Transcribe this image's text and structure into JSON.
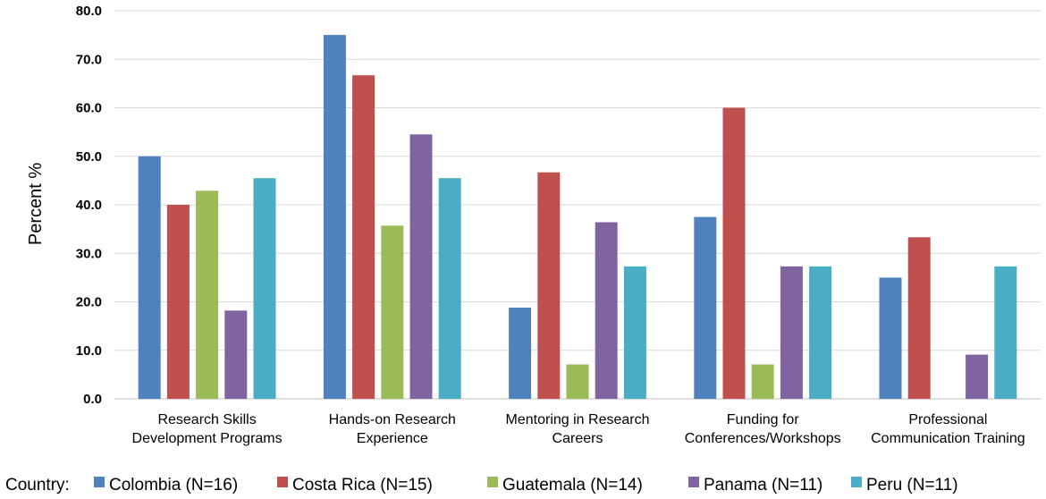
{
  "chart_data": {
    "type": "bar",
    "title": "",
    "xlabel": "",
    "ylabel": "Percent %",
    "ylim": [
      0,
      80
    ],
    "yticks": [
      "0.0",
      "10.0",
      "20.0",
      "30.0",
      "40.0",
      "50.0",
      "60.0",
      "70.0",
      "80.0"
    ],
    "grid": true,
    "legend_position": "bottom",
    "legend_title": "Country:",
    "categories": [
      [
        "Research Skills",
        "Development Programs"
      ],
      [
        "Hands-on Research",
        "Experience"
      ],
      [
        "Mentoring in Research",
        "Careers"
      ],
      [
        "Funding for",
        "Conferences/Workshops"
      ],
      [
        "Professional",
        "Communication Training"
      ]
    ],
    "series": [
      {
        "name": "Colombia (N=16)",
        "color": "#4f81bd",
        "values": [
          50.0,
          75.0,
          18.8,
          37.5,
          25.0
        ]
      },
      {
        "name": "Costa Rica (N=15)",
        "color": "#c0504d",
        "values": [
          40.0,
          66.7,
          46.7,
          60.0,
          33.3
        ]
      },
      {
        "name": "Guatemala (N=14)",
        "color": "#9bbb59",
        "values": [
          42.9,
          35.7,
          7.1,
          7.1,
          0.0
        ]
      },
      {
        "name": "Panama (N=11)",
        "color": "#8064a2",
        "values": [
          18.2,
          54.5,
          36.4,
          27.3,
          9.1
        ]
      },
      {
        "name": "Peru (N=11)",
        "color": "#4bacc6",
        "values": [
          45.5,
          45.5,
          27.3,
          27.3,
          27.3
        ]
      }
    ]
  },
  "colors": {
    "grid": "#d9d9d9",
    "axis": "#bfbfbf"
  }
}
